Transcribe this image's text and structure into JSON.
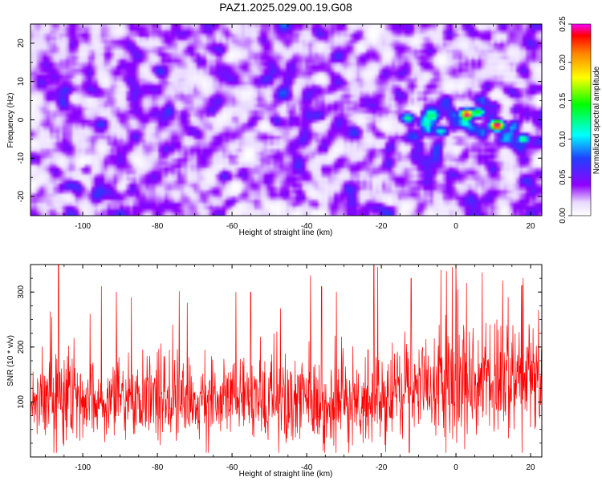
{
  "title": "PAZ1.2025.029.00.19.G08",
  "chart_data": [
    {
      "type": "heatmap",
      "xlabel": "Height of straight line (km)",
      "ylabel": "Frequency (Hz)",
      "xlim": [
        -114,
        23
      ],
      "ylim": [
        -25,
        25
      ],
      "x_ticks": [
        -100,
        -80,
        -60,
        -40,
        -20,
        0,
        20
      ],
      "y_ticks": [
        -20,
        -10,
        0,
        10,
        20
      ],
      "colorbar": {
        "label": "Normalized spectral amplitude",
        "range": [
          0.0,
          0.25
        ],
        "ticks": [
          "0.00",
          "0.05",
          "0.10",
          "0.15",
          "0.20",
          "0.25"
        ],
        "colors": [
          "#ffffff",
          "#8000ff",
          "#0040ff",
          "#00ffff",
          "#00ff00",
          "#ffff00",
          "#ff8000",
          "#ff0000",
          "#ff00ff"
        ]
      },
      "hotspots": [
        {
          "x": 3,
          "y": 1.5,
          "value": 0.24
        },
        {
          "x": 11,
          "y": -1.5,
          "value": 0.25
        },
        {
          "x": -13,
          "y": 0.5,
          "value": 0.12
        },
        {
          "x": -4,
          "y": -3,
          "value": 0.11
        },
        {
          "x": 6,
          "y": 2,
          "value": 0.14
        },
        {
          "x": 18,
          "y": -5,
          "value": 0.12
        }
      ],
      "background_level": [
        0.02,
        0.05
      ]
    },
    {
      "type": "line",
      "xlabel": "Height of straight line (km)",
      "ylabel": "SNR (10 * v/v)",
      "xlim": [
        -114,
        23
      ],
      "ylim": [
        0,
        350
      ],
      "x_ticks": [
        -100,
        -80,
        -60,
        -40,
        -20,
        0,
        20
      ],
      "y_ticks": [
        100,
        200,
        300
      ],
      "series": [
        {
          "color": "#ff0000",
          "x": [
            -114,
            -110,
            -105,
            -100,
            -95,
            -90,
            -85,
            -80,
            -75,
            -70,
            -65,
            -60,
            -55,
            -50,
            -45,
            -40,
            -35,
            -30,
            -25,
            -20,
            -15,
            -10,
            -5,
            0,
            5,
            10,
            15,
            20,
            23
          ],
          "mean": [
            100,
            105,
            110,
            100,
            105,
            100,
            95,
            100,
            100,
            95,
            95,
            100,
            95,
            100,
            105,
            100,
            100,
            95,
            100,
            110,
            110,
            125,
            130,
            135,
            135,
            140,
            140,
            140,
            140
          ],
          "peaks": [
            {
              "x": -106.5,
              "y": 350
            },
            {
              "x": -98,
              "y": 260
            },
            {
              "x": -95,
              "y": 310
            },
            {
              "x": -91,
              "y": 300
            },
            {
              "x": -87,
              "y": 290
            },
            {
              "x": -72,
              "y": 280
            },
            {
              "x": -59,
              "y": 300
            },
            {
              "x": -55,
              "y": 300
            },
            {
              "x": -47,
              "y": 270
            },
            {
              "x": -39,
              "y": 330
            },
            {
              "x": -36,
              "y": 310
            },
            {
              "x": -32,
              "y": 300
            },
            {
              "x": -22,
              "y": 350
            },
            {
              "x": -21,
              "y": 345
            },
            {
              "x": -12,
              "y": 325
            },
            {
              "x": -4,
              "y": 340
            },
            {
              "x": -1,
              "y": 345
            },
            {
              "x": 0,
              "y": 350
            },
            {
              "x": 7,
              "y": 335
            },
            {
              "x": 14,
              "y": 290
            },
            {
              "x": 18,
              "y": 325
            }
          ]
        }
      ]
    }
  ]
}
